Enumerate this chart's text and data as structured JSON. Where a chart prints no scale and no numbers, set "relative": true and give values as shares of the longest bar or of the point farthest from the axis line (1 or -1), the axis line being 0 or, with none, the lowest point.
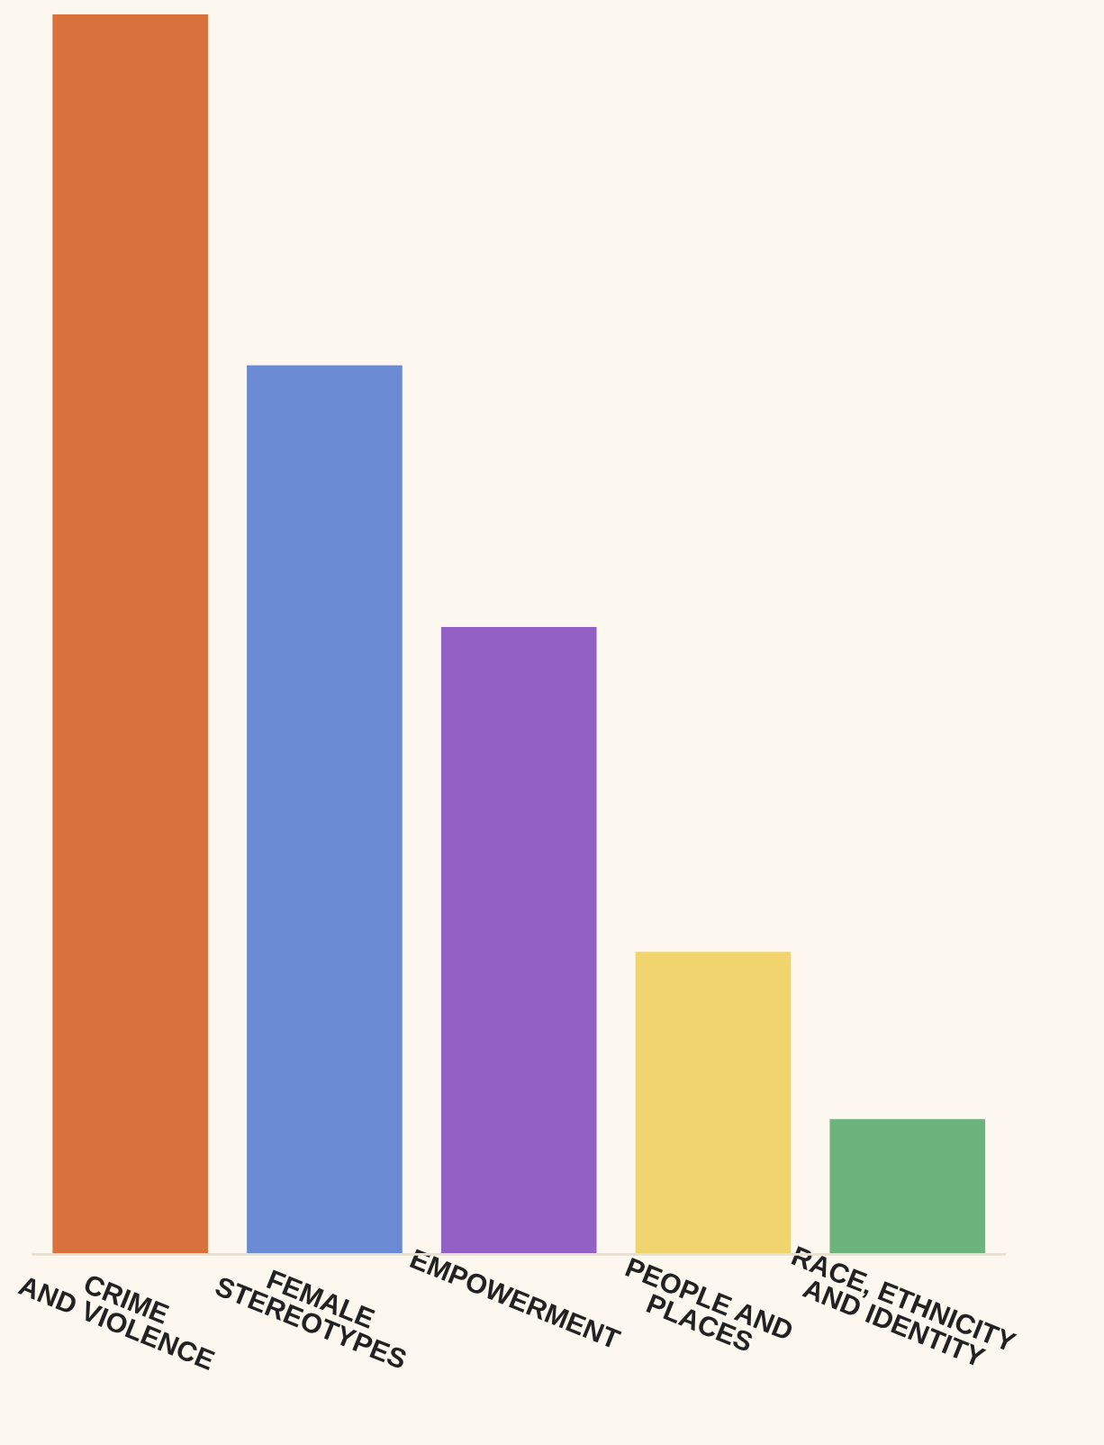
{
  "chart_data": {
    "type": "bar",
    "relative": true,
    "categories": [
      "CRIME\nAND VIOLENCE",
      "FEMALE\nSTEREOTYPES",
      "EMPOWERMENT",
      "PEOPLE AND\nPLACES",
      "RACE, ETHNICITY\nAND IDENTITY"
    ],
    "values": [
      1,
      0.717,
      0.506,
      0.244,
      0.109
    ],
    "colors": [
      "#d9713c",
      "#6a8bd4",
      "#9361c6",
      "#f0d56e",
      "#6db37d"
    ],
    "grid": false,
    "legend": false
  }
}
